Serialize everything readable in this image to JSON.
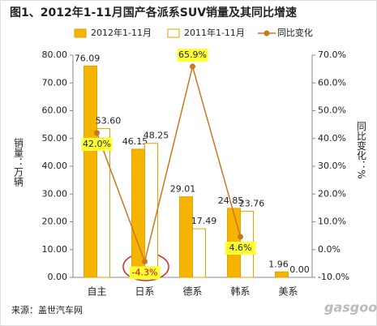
{
  "chart_data": {
    "type": "bar-line",
    "title": "图1、2012年1-11月国产各派系SUV销量及其同比增速",
    "y_label": "销量：万辆",
    "y2_label": "同比变化：%",
    "source": "来源：盖世汽车网",
    "watermark": "gasgoo",
    "categories": [
      "自主",
      "日系",
      "德系",
      "韩系",
      "美系"
    ],
    "series": [
      {
        "name": "2012年1-11月",
        "type": "bar",
        "color": "#f5b400",
        "values": [
          76.09,
          46.15,
          29.01,
          24.85,
          1.96
        ],
        "value_labels": [
          "76.09",
          "46.15",
          "29.01",
          "24.85",
          "1.96"
        ]
      },
      {
        "name": "2011年1-11月",
        "type": "bar",
        "color": "#ffffff",
        "values": [
          53.6,
          48.25,
          17.49,
          23.76,
          0.0
        ],
        "value_labels": [
          "53.60",
          "48.25",
          "17.49",
          "23.76",
          "0.00"
        ]
      },
      {
        "name": "同比变化",
        "type": "line",
        "axis": "y2",
        "color": "#c8781e",
        "values": [
          42.0,
          -4.3,
          65.9,
          4.6,
          null
        ],
        "value_labels": [
          "42.0%",
          "-4.3%",
          "65.9%",
          "4.6%",
          null
        ]
      }
    ],
    "ylim": [
      0,
      80
    ],
    "yticks": [
      {
        "value": 0,
        "label": "0.00"
      },
      {
        "value": 10,
        "label": "10.00"
      },
      {
        "value": 20,
        "label": "20.00"
      },
      {
        "value": 30,
        "label": "30.00"
      },
      {
        "value": 40,
        "label": "40.00"
      },
      {
        "value": 50,
        "label": "50.00"
      },
      {
        "value": 60,
        "label": "60.00"
      },
      {
        "value": 70,
        "label": "70.00"
      },
      {
        "value": 80,
        "label": "80.00"
      }
    ],
    "y2lim": [
      -10,
      70
    ],
    "y2ticks": [
      {
        "value": -10,
        "label": "-10.0%"
      },
      {
        "value": 0,
        "label": "0.0%"
      },
      {
        "value": 10,
        "label": "10.0%"
      },
      {
        "value": 20,
        "label": "20.0%"
      },
      {
        "value": 30,
        "label": "30.0%"
      },
      {
        "value": 40,
        "label": "40.0%"
      },
      {
        "value": 50,
        "label": "50.0%"
      },
      {
        "value": 60,
        "label": "60.0%"
      },
      {
        "value": 70,
        "label": "70.0%"
      }
    ],
    "legend": "top"
  }
}
